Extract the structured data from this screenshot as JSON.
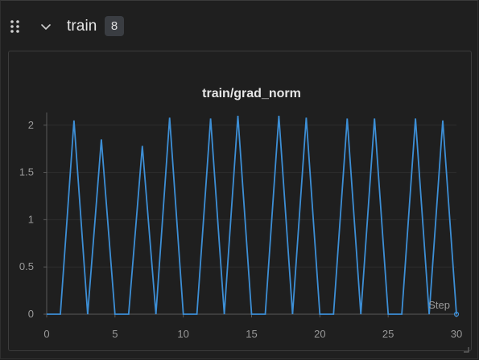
{
  "section": {
    "title": "train",
    "count": "8",
    "collapse_icon": "chevron-down-icon",
    "drag_icon": "drag-handle-icon"
  },
  "colors": {
    "background": "#1f1f1f",
    "panel_border": "#3c3c3c",
    "line": "#3d8fd6",
    "grid": "#2e2e2e",
    "axis_text": "#9a9a9a"
  },
  "chart_data": {
    "type": "line",
    "title": "train/grad_norm",
    "xlabel": "Step",
    "ylabel": "",
    "xlim": [
      0,
      30
    ],
    "ylim": [
      0,
      2.1
    ],
    "xticks": [
      0,
      5,
      10,
      15,
      20,
      25,
      30
    ],
    "yticks": [
      0,
      0.5,
      1,
      1.5,
      2
    ],
    "xtick_labels": [
      "0",
      "5",
      "10",
      "15",
      "20",
      "25",
      "30"
    ],
    "ytick_labels": [
      "0",
      "0.5",
      "1",
      "1.5",
      "2"
    ],
    "grid": true,
    "legend": "none",
    "series": [
      {
        "color": "#3d8fd6",
        "x": [
          0,
          1,
          2,
          3,
          4,
          5,
          6,
          7,
          8,
          9,
          10,
          11,
          12,
          13,
          14,
          15,
          16,
          17,
          18,
          19,
          20,
          21,
          22,
          23,
          24,
          25,
          26,
          27,
          28,
          29,
          30
        ],
        "y": [
          0,
          0,
          2.05,
          0,
          1.85,
          0,
          0,
          1.78,
          0,
          2.08,
          0,
          0,
          2.07,
          0,
          2.1,
          0,
          0,
          2.1,
          0,
          2.08,
          0,
          0,
          2.07,
          0,
          2.07,
          0,
          0,
          2.07,
          0,
          2.05,
          0
        ]
      }
    ]
  }
}
